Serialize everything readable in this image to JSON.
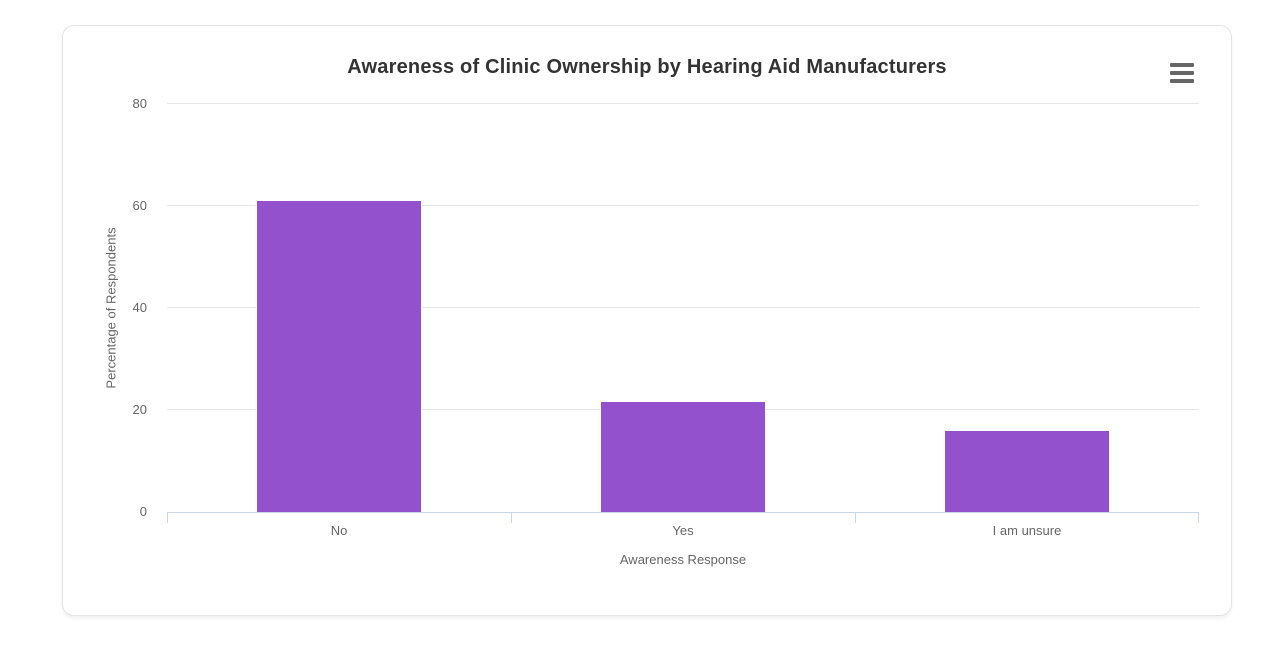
{
  "card": {
    "background": "#ffffff",
    "border_color": "#e4e4e4"
  },
  "menu": {
    "icon": "hamburger-menu-icon",
    "color": "#666666"
  },
  "chart_data": {
    "type": "bar",
    "title": "Awareness of Clinic Ownership by Hearing Aid Manufacturers",
    "categories": [
      "No",
      "Yes",
      "I am unsure"
    ],
    "values": [
      61.2,
      21.7,
      16.0
    ],
    "xlabel": "Awareness Response",
    "ylabel": "Percentage of Respondents",
    "ylim": [
      0,
      80
    ],
    "yticks": [
      0,
      20,
      40,
      60,
      80
    ],
    "grid": true,
    "legend": false,
    "bar_color": "#9351ce",
    "bar_border_color": "#ffffff",
    "grid_color": "#e6e6e6",
    "axis_line_color": "#ccd6eb",
    "label_color": "#666666",
    "title_color": "#333333"
  }
}
